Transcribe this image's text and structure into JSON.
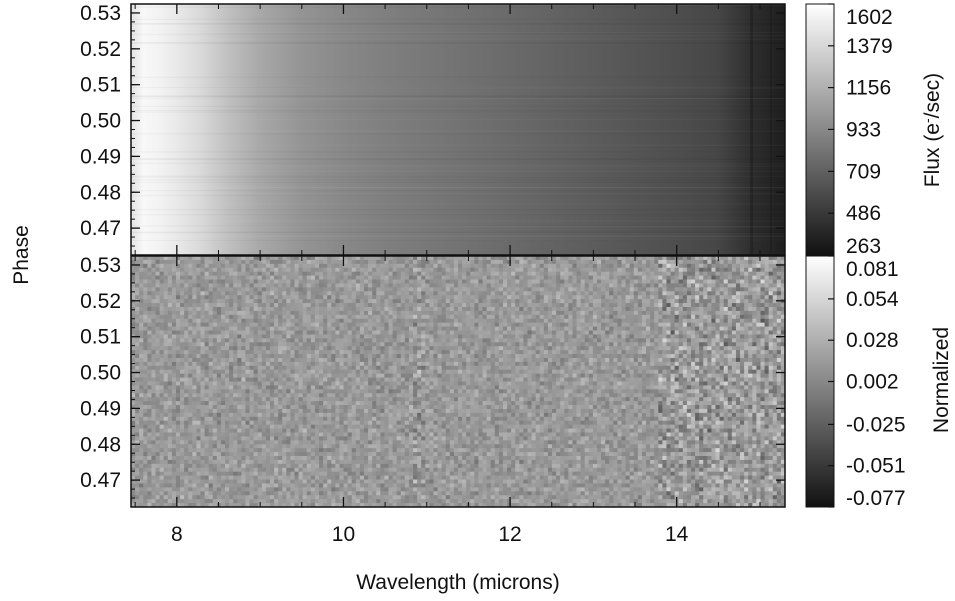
{
  "chart_data": [
    {
      "type": "heatmap",
      "panel": "top",
      "xlabel": "Wavelength (microns)",
      "ylabel": "Phase",
      "xlim": [
        7.45,
        15.3
      ],
      "ylim": [
        0.4625,
        0.5325
      ],
      "x_ticks": [
        8,
        10,
        12,
        14
      ],
      "x_tick_labels": [
        "8",
        "10",
        "12",
        "14"
      ],
      "y_ticks": [
        0.47,
        0.48,
        0.49,
        0.5,
        0.51,
        0.52,
        0.53
      ],
      "y_tick_labels": [
        "0.47",
        "0.48",
        "0.49",
        "0.50",
        "0.51",
        "0.52",
        "0.53"
      ],
      "colorbar": {
        "label_main": "Flux (e",
        "label_sup": "-",
        "label_end": "/sec)",
        "range": [
          263,
          1602
        ],
        "ticks": [
          1602,
          1379,
          1156,
          933,
          709,
          486,
          263
        ],
        "tick_labels": [
          "1602",
          "1379",
          "1156",
          "933",
          "709",
          "486",
          "263"
        ],
        "colormap": "grayscale"
      },
      "flux_profile": {
        "wavelength": [
          7.45,
          7.6,
          7.8,
          8.0,
          8.3,
          8.6,
          9.0,
          9.5,
          10.0,
          10.5,
          11.0,
          11.5,
          12.0,
          12.5,
          13.0,
          13.5,
          14.0,
          14.5,
          14.9,
          15.3
        ],
        "flux": [
          1450,
          1560,
          1530,
          1480,
          1380,
          1250,
          1110,
          1000,
          930,
          880,
          840,
          800,
          760,
          720,
          680,
          640,
          600,
          560,
          420,
          330
        ]
      }
    },
    {
      "type": "heatmap",
      "panel": "bottom",
      "xlabel": "Wavelength (microns)",
      "ylabel": "Phase",
      "xlim": [
        7.45,
        15.3
      ],
      "ylim": [
        0.4625,
        0.5325
      ],
      "x_ticks": [
        8,
        10,
        12,
        14
      ],
      "x_tick_labels": [
        "8",
        "10",
        "12",
        "14"
      ],
      "y_ticks": [
        0.47,
        0.48,
        0.49,
        0.5,
        0.51,
        0.52,
        0.53
      ],
      "y_tick_labels": [
        "0.47",
        "0.48",
        "0.49",
        "0.50",
        "0.51",
        "0.52",
        "0.53"
      ],
      "colorbar": {
        "label": "Normalized",
        "range": [
          -0.077,
          0.081
        ],
        "ticks": [
          0.081,
          0.054,
          0.028,
          0.002,
          -0.025,
          -0.051,
          -0.077
        ],
        "tick_labels": [
          "0.081",
          "0.054",
          "0.028",
          "0.002",
          "-0.025",
          "-0.051",
          "-0.077"
        ],
        "colormap": "grayscale"
      },
      "residual_mean": 0.0,
      "residual_rms": 0.02
    }
  ],
  "figure": {
    "xlabel": "Wavelength (microns)",
    "ylabel": "Phase"
  }
}
